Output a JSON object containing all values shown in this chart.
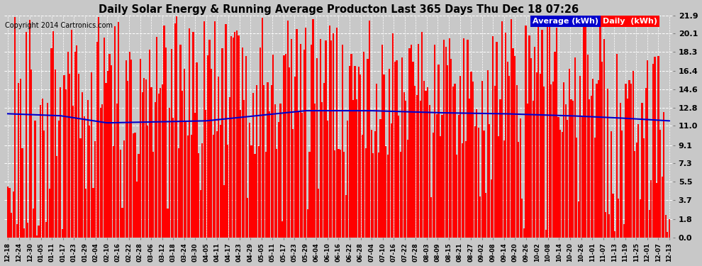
{
  "title": "Daily Solar Energy & Running Average Producton Last 365 Days Thu Dec 18 07:26",
  "copyright": "Copyright 2014 Cartronics.com",
  "bar_color": "#FF0000",
  "avg_line_color": "#0000CC",
  "background_color": "#C8C8C8",
  "grid_color": "#FFFFFF",
  "yticks": [
    0.0,
    1.8,
    3.7,
    5.5,
    7.3,
    9.1,
    11.0,
    12.8,
    14.6,
    16.4,
    18.3,
    20.1,
    21.9
  ],
  "ylim": [
    0,
    21.9
  ],
  "legend_avg_label": "Average (kWh)",
  "legend_daily_label": "Daily  (kWh)",
  "legend_avg_bg": "#0000CC",
  "legend_daily_bg": "#FF0000",
  "xtick_labels": [
    "12-18",
    "12-24",
    "12-30",
    "01-05",
    "01-11",
    "01-17",
    "01-23",
    "01-29",
    "02-04",
    "02-10",
    "02-16",
    "02-22",
    "02-28",
    "03-06",
    "03-12",
    "03-18",
    "03-24",
    "03-30",
    "04-05",
    "04-11",
    "04-17",
    "04-23",
    "04-29",
    "05-05",
    "05-11",
    "05-17",
    "05-23",
    "05-29",
    "06-04",
    "06-10",
    "06-16",
    "06-22",
    "06-28",
    "07-04",
    "07-10",
    "07-16",
    "07-22",
    "07-28",
    "08-03",
    "08-09",
    "08-15",
    "08-21",
    "08-27",
    "09-02",
    "09-08",
    "09-14",
    "09-20",
    "09-26",
    "10-02",
    "10-08",
    "10-14",
    "10-20",
    "10-26",
    "11-01",
    "11-07",
    "11-13",
    "11-19",
    "11-25",
    "12-01",
    "12-07",
    "12-13"
  ]
}
